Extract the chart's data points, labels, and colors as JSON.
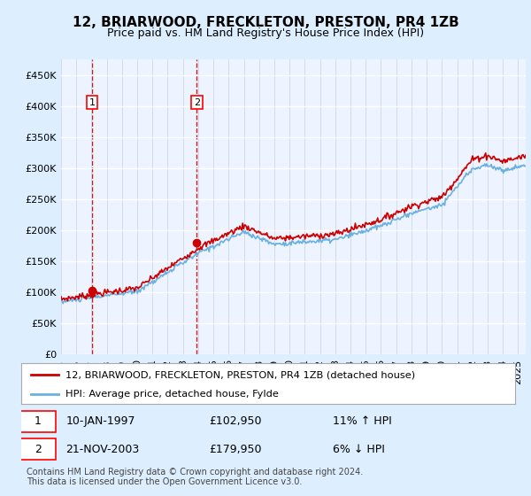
{
  "title": "12, BRIARWOOD, FRECKLETON, PRESTON, PR4 1ZB",
  "subtitle": "Price paid vs. HM Land Registry's House Price Index (HPI)",
  "legend_line1": "12, BRIARWOOD, FRECKLETON, PRESTON, PR4 1ZB (detached house)",
  "legend_line2": "HPI: Average price, detached house, Fylde",
  "transaction1_date": "10-JAN-1997",
  "transaction1_price": "£102,950",
  "transaction1_hpi": "11% ↑ HPI",
  "transaction2_date": "21-NOV-2003",
  "transaction2_price": "£179,950",
  "transaction2_hpi": "6% ↓ HPI",
  "footer": "Contains HM Land Registry data © Crown copyright and database right 2024.\nThis data is licensed under the Open Government Licence v3.0.",
  "hpi_color": "#6ab0e0",
  "price_color": "#cc0000",
  "dashed_line_color": "#cc0000",
  "background_color": "#ddeeff",
  "plot_bg_color": "#eef4ff",
  "ylim": [
    0,
    475000
  ],
  "yticks": [
    0,
    50000,
    100000,
    150000,
    200000,
    250000,
    300000,
    350000,
    400000,
    450000
  ],
  "transaction1_x": 1997.04,
  "transaction1_y": 102950,
  "transaction2_x": 2003.9,
  "transaction2_y": 179950,
  "xmin": 1995,
  "xmax": 2025.5
}
